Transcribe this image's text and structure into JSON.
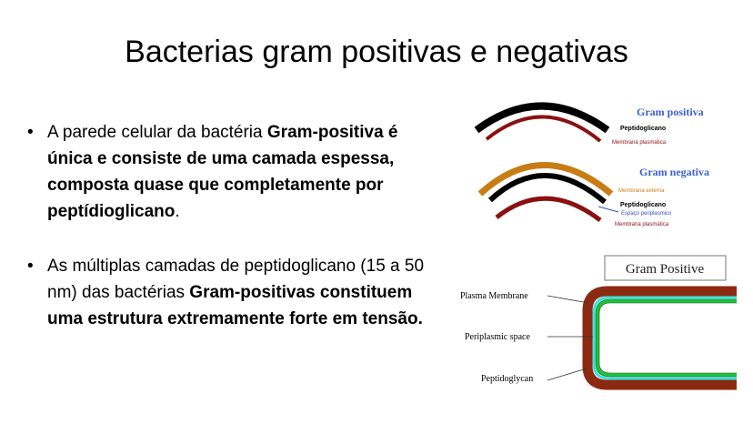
{
  "slide": {
    "title": "Bacterias gram positivas e negativas",
    "bullets": [
      {
        "marker": "•",
        "parts": [
          {
            "text": "A parede celular da bactéria ",
            "bold": false
          },
          {
            "text": "Gram-positiva é única e consiste de uma camada espessa, composta quase que completamente por peptídioglicano",
            "bold": true
          },
          {
            "text": ".",
            "bold": false
          }
        ]
      },
      {
        "marker": "•",
        "parts": [
          {
            "text": "As múltiplas camadas de peptidoglicano (15 a 50 nm) das bactérias ",
            "bold": false
          },
          {
            "text": "Gram-positivas constituem uma estrutura extremamente forte em tensão.",
            "bold": true
          }
        ]
      }
    ]
  },
  "diagram_top": {
    "gram_positive": {
      "title": "Gram positiva",
      "layer1": "Peptidoglicano",
      "layer2": "Membrana plasmática"
    },
    "gram_negative": {
      "title": "Gram negativa",
      "layer1": "Membrana externa",
      "layer2": "Peptidoglicano",
      "layer3": "Espaço periplasmico",
      "layer4": "Membrana plasmática"
    },
    "colors": {
      "title": "#3a5fcd",
      "peptidoglycan": "#000000",
      "membrane": "#8b1010",
      "outer": "#c87d14",
      "periplasm": "#3a4fbf"
    }
  },
  "diagram_bottom": {
    "title": "Gram Positive",
    "labels": [
      "Plasma Membrane",
      "Periplasmic space",
      "Peptidoglycan"
    ],
    "colors": {
      "wall": "#8b2a10",
      "space": "#40e0e0",
      "membrane": "#20c040"
    }
  }
}
